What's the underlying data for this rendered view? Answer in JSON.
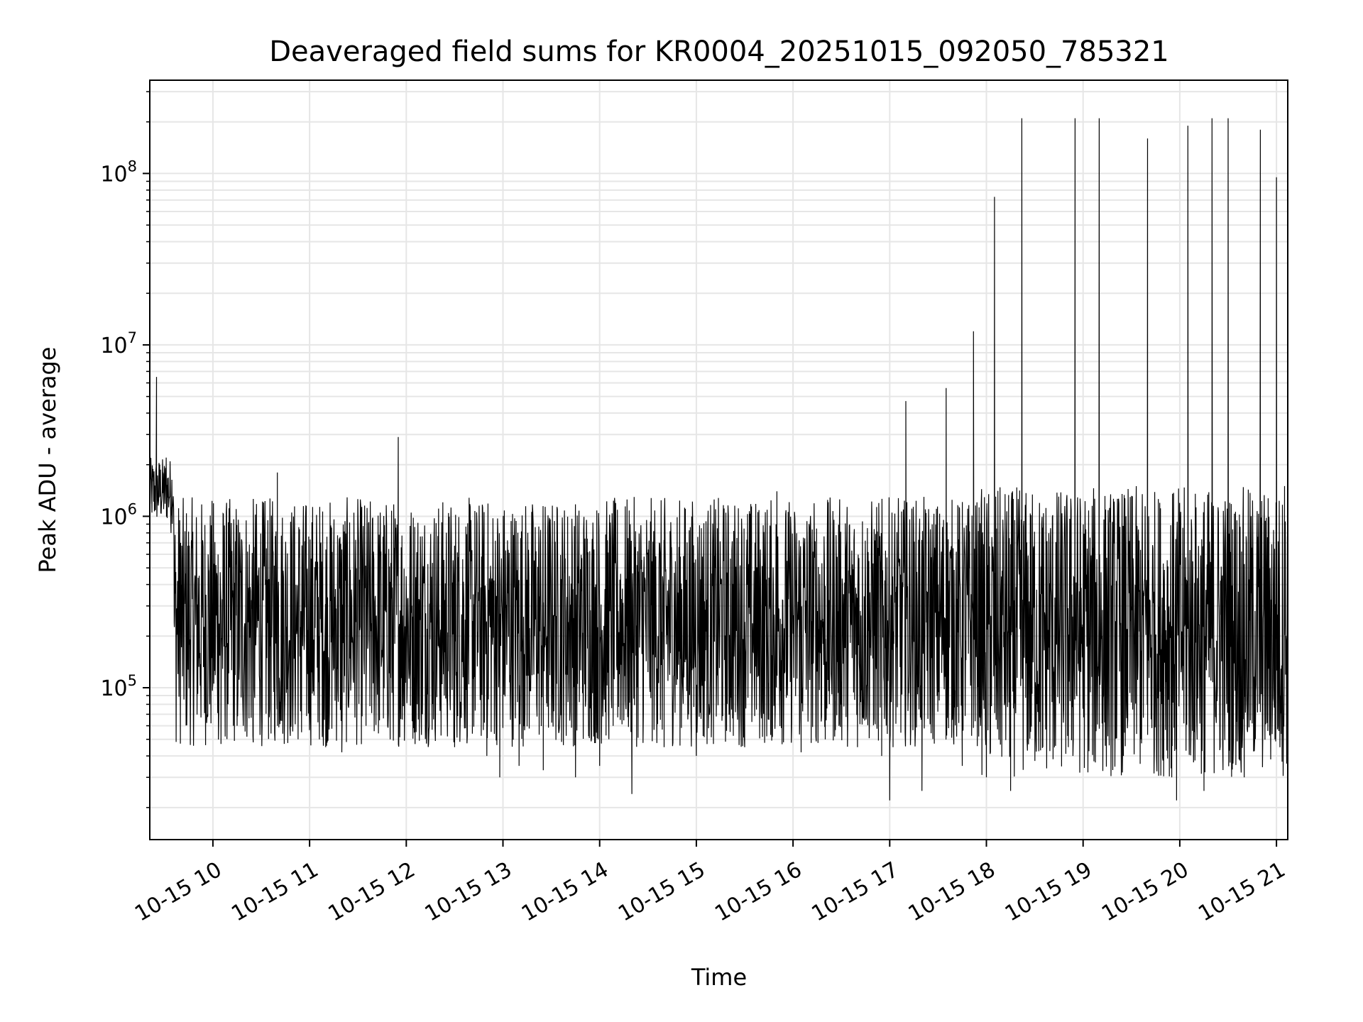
{
  "chart_data": {
    "type": "line",
    "title": "Deaveraged field sums for KR0004_20251015_092050_785321",
    "xlabel": "Time",
    "ylabel": "Peak ADU - average",
    "yscale": "log",
    "ylim": [
      13000,
      350000000
    ],
    "xlim": [
      "2025-10-15 09:20:50",
      "2025-10-15 21:07"
    ],
    "grid": true,
    "line_color": "#000000",
    "grid_color": "#e6e6e6",
    "x_ticks": [
      "10-15 10",
      "10-15 11",
      "10-15 12",
      "10-15 13",
      "10-15 14",
      "10-15 15",
      "10-15 16",
      "10-15 17",
      "10-15 18",
      "10-15 19",
      "10-15 20",
      "10-15 21"
    ],
    "y_ticks": [
      {
        "base": "10",
        "exp": "5",
        "value": 100000
      },
      {
        "base": "10",
        "exp": "6",
        "value": 1000000
      },
      {
        "base": "10",
        "exp": "7",
        "value": 10000000
      },
      {
        "base": "10",
        "exp": "8",
        "value": 100000000
      }
    ],
    "series": [
      {
        "points": [
          [
            "2025-10-15 09:21",
            1300000
          ],
          [
            "2025-10-15 09:23",
            1600000
          ],
          [
            "2025-10-15 09:25",
            6500000
          ],
          [
            "2025-10-15 09:27",
            2000000
          ],
          [
            "2025-10-15 09:29",
            1800000
          ],
          [
            "2025-10-15 09:31",
            2200000
          ],
          [
            "2025-10-15 09:34",
            800000
          ],
          [
            "2025-10-15 09:36",
            240000
          ],
          [
            "2025-10-15 09:40",
            700000
          ],
          [
            "2025-10-15 09:45",
            500000
          ],
          [
            "2025-10-15 09:50",
            250000
          ],
          [
            "2025-10-15 09:55",
            150000
          ],
          [
            "2025-10-15 09:58",
            80000
          ],
          [
            "2025-10-15 10:05",
            47000
          ],
          [
            "2025-10-15 10:15",
            60000
          ],
          [
            "2025-10-15 10:25",
            48000
          ],
          [
            "2025-10-15 10:40",
            1800000
          ],
          [
            "2025-10-15 10:55",
            55000
          ],
          [
            "2025-10-15 11:10",
            45000
          ],
          [
            "2025-10-15 11:20",
            42000
          ],
          [
            "2025-10-15 11:35",
            60000
          ],
          [
            "2025-10-15 11:50",
            50000
          ],
          [
            "2025-10-15 11:55",
            2900000
          ],
          [
            "2025-10-15 12:10",
            70000
          ],
          [
            "2025-10-15 12:30",
            45000
          ],
          [
            "2025-10-15 12:50",
            40000
          ],
          [
            "2025-10-15 12:58",
            30000
          ],
          [
            "2025-10-15 13:10",
            35000
          ],
          [
            "2025-10-15 13:25",
            33000
          ],
          [
            "2025-10-15 13:45",
            30000
          ],
          [
            "2025-10-15 14:00",
            35000
          ],
          [
            "2025-10-15 14:20",
            24000
          ],
          [
            "2025-10-15 14:40",
            45000
          ],
          [
            "2025-10-15 15:00",
            40000
          ],
          [
            "2025-10-15 15:30",
            45000
          ],
          [
            "2025-10-15 15:45",
            65000
          ],
          [
            "2025-10-15 15:50",
            1400000
          ],
          [
            "2025-10-15 16:05",
            42000
          ],
          [
            "2025-10-15 16:20",
            50000
          ],
          [
            "2025-10-15 16:40",
            45000
          ],
          [
            "2025-10-15 16:55",
            40000
          ],
          [
            "2025-10-15 17:00",
            22000
          ],
          [
            "2025-10-15 17:10",
            4700000
          ],
          [
            "2025-10-15 17:20",
            25000
          ],
          [
            "2025-10-15 17:35",
            5600000
          ],
          [
            "2025-10-15 17:45",
            35000
          ],
          [
            "2025-10-15 17:52",
            12000000
          ],
          [
            "2025-10-15 18:00",
            30000
          ],
          [
            "2025-10-15 18:05",
            73000000
          ],
          [
            "2025-10-15 18:15",
            25000
          ],
          [
            "2025-10-15 18:22",
            210000000
          ],
          [
            "2025-10-15 18:35",
            45000
          ],
          [
            "2025-10-15 18:55",
            210000000
          ],
          [
            "2025-10-15 19:10",
            210000000
          ],
          [
            "2025-10-15 19:25",
            40000
          ],
          [
            "2025-10-15 19:40",
            160000000
          ],
          [
            "2025-10-15 19:55",
            30000
          ],
          [
            "2025-10-15 19:58",
            22000
          ],
          [
            "2025-10-15 20:05",
            190000000
          ],
          [
            "2025-10-15 20:15",
            25000
          ],
          [
            "2025-10-15 20:20",
            210000000
          ],
          [
            "2025-10-15 20:30",
            210000000
          ],
          [
            "2025-10-15 20:40",
            30000
          ],
          [
            "2025-10-15 20:50",
            180000000
          ],
          [
            "2025-10-15 21:00",
            95000000
          ],
          [
            "2025-10-15 21:05",
            1500000
          ]
        ]
      }
    ]
  }
}
